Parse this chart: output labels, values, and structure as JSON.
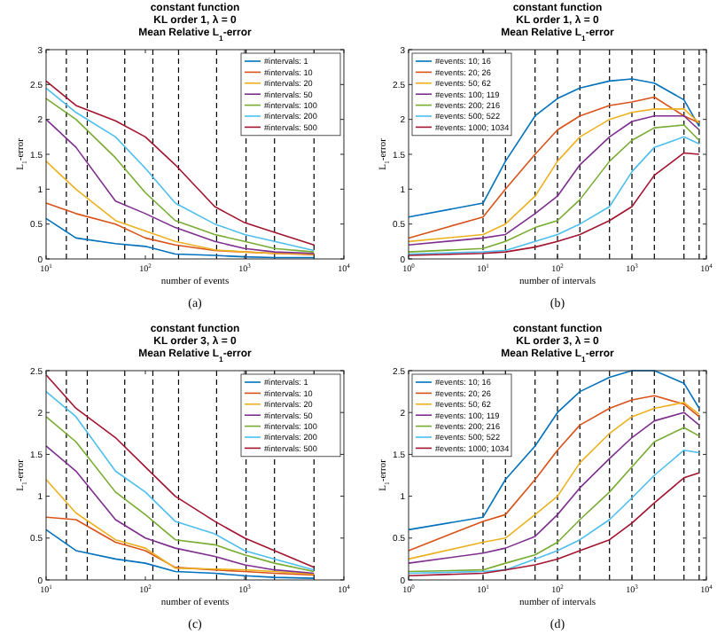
{
  "chart_data": [
    {
      "type": "line",
      "title": "constant function\nKL order 1, λ = 0\nMean Relative L$_{1}$-error",
      "xlabel": "number of events",
      "ylabel": "L$_{1}$-error",
      "annotations": [
        "(a)"
      ],
      "log": "x",
      "legend": "top right",
      "line_style": "solid",
      "x": [
        10,
        20,
        50,
        100,
        200,
        500,
        1000,
        2000,
        5000
      ],
      "xlim": [
        10,
        10000
      ],
      "xticks": [
        {
          "value": 10,
          "label": "10$^{1}$"
        },
        {
          "value": 100,
          "label": "10$^{2}$"
        },
        {
          "value": 1000,
          "label": "10$^{3}$"
        },
        {
          "value": 10000,
          "label": "10$^{4}$"
        }
      ],
      "ylim": [
        0,
        3
      ],
      "yticks": [
        0,
        0.5,
        1,
        1.5,
        2,
        2.5,
        3
      ],
      "ref_lines": [
        {
          "axis": "x",
          "value": 16,
          "color": "#000000",
          "line_style": "dashed"
        },
        {
          "axis": "x",
          "value": 26,
          "color": "#000000",
          "line_style": "dashed"
        },
        {
          "axis": "x",
          "value": 62,
          "color": "#000000",
          "line_style": "dashed"
        },
        {
          "axis": "x",
          "value": 119,
          "color": "#000000",
          "line_style": "dashed"
        },
        {
          "axis": "x",
          "value": 216,
          "color": "#000000",
          "line_style": "dashed"
        },
        {
          "axis": "x",
          "value": 522,
          "color": "#000000",
          "line_style": "dashed"
        },
        {
          "axis": "x",
          "value": 1034,
          "color": "#000000",
          "line_style": "dashed"
        },
        {
          "axis": "x",
          "value": 2000,
          "color": "#000000",
          "line_style": "dashed"
        },
        {
          "axis": "x",
          "value": 5000,
          "color": "#000000",
          "line_style": "dashed"
        }
      ],
      "series": [
        {
          "name": "#intervals: 1",
          "color": "#0072bd",
          "values": [
            0.58,
            0.3,
            0.22,
            0.18,
            0.07,
            0.05,
            0.03,
            0.02,
            0.02
          ]
        },
        {
          "name": "#intervals: 10",
          "color": "#d95319",
          "values": [
            0.8,
            0.65,
            0.5,
            0.3,
            0.2,
            0.12,
            0.1,
            0.08,
            0.06
          ]
        },
        {
          "name": "#intervals: 20",
          "color": "#edb120",
          "values": [
            1.4,
            1.0,
            0.55,
            0.4,
            0.25,
            0.13,
            0.1,
            0.08,
            0.07
          ]
        },
        {
          "name": "#intervals: 50",
          "color": "#7e2f8e",
          "values": [
            2.0,
            1.6,
            0.83,
            0.65,
            0.45,
            0.25,
            0.15,
            0.1,
            0.08
          ]
        },
        {
          "name": "#intervals: 100",
          "color": "#77ac30",
          "values": [
            2.3,
            2.0,
            1.45,
            0.95,
            0.55,
            0.35,
            0.25,
            0.15,
            0.1
          ]
        },
        {
          "name": "#intervals: 200",
          "color": "#4dbeee",
          "values": [
            2.45,
            2.1,
            1.75,
            1.3,
            0.8,
            0.5,
            0.35,
            0.25,
            0.12
          ]
        },
        {
          "name": "#intervals: 500",
          "color": "#a2142f",
          "values": [
            2.55,
            2.2,
            1.98,
            1.75,
            1.35,
            0.75,
            0.52,
            0.38,
            0.2
          ]
        }
      ]
    },
    {
      "type": "line",
      "title": "constant function\nKL order 1, λ = 0\nMean Relative L$_{1}$-error",
      "xlabel": "number of intervals",
      "ylabel": "L$_{1}$-error",
      "annotations": [
        "(b)"
      ],
      "log": "x",
      "legend": "top left",
      "line_style": "solid",
      "x": [
        1,
        10,
        20,
        50,
        100,
        200,
        500,
        1000,
        2000,
        5000,
        8000
      ],
      "xlim": [
        1,
        10000
      ],
      "xticks": [
        {
          "value": 1,
          "label": "10$^{0}$"
        },
        {
          "value": 10,
          "label": "10$^{1}$"
        },
        {
          "value": 100,
          "label": "10$^{2}$"
        },
        {
          "value": 1000,
          "label": "10$^{3}$"
        },
        {
          "value": 10000,
          "label": "10$^{4}$"
        }
      ],
      "ylim": [
        0,
        3
      ],
      "yticks": [
        0,
        0.5,
        1,
        1.5,
        2,
        2.5,
        3
      ],
      "ref_lines": [
        {
          "axis": "x",
          "value": 10,
          "color": "#000000",
          "line_style": "dashed"
        },
        {
          "axis": "x",
          "value": 20,
          "color": "#000000",
          "line_style": "dashed"
        },
        {
          "axis": "x",
          "value": 50,
          "color": "#000000",
          "line_style": "dashed"
        },
        {
          "axis": "x",
          "value": 100,
          "color": "#000000",
          "line_style": "dashed"
        },
        {
          "axis": "x",
          "value": 200,
          "color": "#000000",
          "line_style": "dashed"
        },
        {
          "axis": "x",
          "value": 500,
          "color": "#000000",
          "line_style": "dashed"
        },
        {
          "axis": "x",
          "value": 1000,
          "color": "#000000",
          "line_style": "dashed"
        },
        {
          "axis": "x",
          "value": 2000,
          "color": "#000000",
          "line_style": "dashed"
        },
        {
          "axis": "x",
          "value": 5000,
          "color": "#000000",
          "line_style": "dashed"
        },
        {
          "axis": "x",
          "value": 8000,
          "color": "#000000",
          "line_style": "dashed"
        }
      ],
      "series": [
        {
          "name": "#events: 10; 16",
          "color": "#0072bd",
          "values": [
            0.6,
            0.8,
            1.4,
            2.05,
            2.3,
            2.45,
            2.55,
            2.58,
            2.52,
            2.28,
            1.9
          ]
        },
        {
          "name": "#events: 20; 26",
          "color": "#d95319",
          "values": [
            0.3,
            0.6,
            1.0,
            1.5,
            1.85,
            2.05,
            2.2,
            2.25,
            2.32,
            2.05,
            1.95
          ]
        },
        {
          "name": "#events: 50; 62",
          "color": "#edb120",
          "values": [
            0.25,
            0.35,
            0.5,
            0.9,
            1.4,
            1.75,
            2.0,
            2.1,
            2.15,
            2.15,
            1.95
          ]
        },
        {
          "name": "#events: 100; 119",
          "color": "#7e2f8e",
          "values": [
            0.2,
            0.3,
            0.35,
            0.65,
            0.9,
            1.35,
            1.75,
            1.97,
            2.05,
            2.05,
            1.85
          ]
        },
        {
          "name": "#events: 200; 216",
          "color": "#77ac30",
          "values": [
            0.1,
            0.15,
            0.25,
            0.45,
            0.55,
            0.85,
            1.4,
            1.7,
            1.88,
            1.92,
            1.7
          ]
        },
        {
          "name": "#events: 500; 522",
          "color": "#4dbeee",
          "values": [
            0.07,
            0.1,
            0.12,
            0.25,
            0.35,
            0.5,
            0.75,
            1.25,
            1.6,
            1.75,
            1.65
          ]
        },
        {
          "name": "#events: 1000; 1034",
          "color": "#a2142f",
          "values": [
            0.05,
            0.08,
            0.1,
            0.17,
            0.25,
            0.35,
            0.55,
            0.75,
            1.2,
            1.52,
            1.5
          ]
        }
      ]
    },
    {
      "type": "line",
      "title": "constant function\nKL order 3, λ = 0\nMean Relative L$_{1}$-error",
      "xlabel": "number of events",
      "ylabel": "L$_{1}$-error",
      "annotations": [
        "(c)"
      ],
      "log": "x",
      "legend": "top right",
      "line_style": "solid",
      "x": [
        10,
        20,
        50,
        100,
        200,
        500,
        1000,
        2000,
        5000
      ],
      "xlim": [
        10,
        10000
      ],
      "xticks": [
        {
          "value": 10,
          "label": "10$^{1}$"
        },
        {
          "value": 100,
          "label": "10$^{2}$"
        },
        {
          "value": 1000,
          "label": "10$^{3}$"
        },
        {
          "value": 10000,
          "label": "10$^{4}$"
        }
      ],
      "ylim": [
        0,
        2.5
      ],
      "yticks": [
        0,
        0.5,
        1,
        1.5,
        2,
        2.5
      ],
      "ref_lines": [
        {
          "axis": "x",
          "value": 16,
          "color": "#000000",
          "line_style": "dashed"
        },
        {
          "axis": "x",
          "value": 26,
          "color": "#000000",
          "line_style": "dashed"
        },
        {
          "axis": "x",
          "value": 62,
          "color": "#000000",
          "line_style": "dashed"
        },
        {
          "axis": "x",
          "value": 119,
          "color": "#000000",
          "line_style": "dashed"
        },
        {
          "axis": "x",
          "value": 216,
          "color": "#000000",
          "line_style": "dashed"
        },
        {
          "axis": "x",
          "value": 522,
          "color": "#000000",
          "line_style": "dashed"
        },
        {
          "axis": "x",
          "value": 1034,
          "color": "#000000",
          "line_style": "dashed"
        },
        {
          "axis": "x",
          "value": 2000,
          "color": "#000000",
          "line_style": "dashed"
        },
        {
          "axis": "x",
          "value": 5000,
          "color": "#000000",
          "line_style": "dashed"
        }
      ],
      "series": [
        {
          "name": "#intervals: 1",
          "color": "#0072bd",
          "values": [
            0.6,
            0.35,
            0.25,
            0.2,
            0.1,
            0.08,
            0.05,
            0.03,
            0.02
          ]
        },
        {
          "name": "#intervals: 10",
          "color": "#d95319",
          "values": [
            0.75,
            0.72,
            0.45,
            0.35,
            0.15,
            0.12,
            0.1,
            0.08,
            0.06
          ]
        },
        {
          "name": "#intervals: 20",
          "color": "#edb120",
          "values": [
            1.2,
            0.8,
            0.48,
            0.38,
            0.14,
            0.13,
            0.12,
            0.1,
            0.07
          ]
        },
        {
          "name": "#intervals: 50",
          "color": "#7e2f8e",
          "values": [
            1.6,
            1.3,
            0.72,
            0.5,
            0.38,
            0.28,
            0.18,
            0.12,
            0.08
          ]
        },
        {
          "name": "#intervals: 100",
          "color": "#77ac30",
          "values": [
            1.95,
            1.65,
            1.05,
            0.78,
            0.48,
            0.42,
            0.3,
            0.2,
            0.1
          ]
        },
        {
          "name": "#intervals: 200",
          "color": "#4dbeee",
          "values": [
            2.25,
            1.95,
            1.3,
            1.05,
            0.7,
            0.55,
            0.35,
            0.25,
            0.12
          ]
        },
        {
          "name": "#intervals: 500",
          "color": "#a2142f",
          "values": [
            2.45,
            2.05,
            1.7,
            1.35,
            1.0,
            0.7,
            0.5,
            0.35,
            0.15
          ]
        }
      ]
    },
    {
      "type": "line",
      "title": "constant function\nKL order 3, λ = 0\nMean Relative L$_{1}$-error",
      "xlabel": "number of intervals",
      "ylabel": "L$_{1}$-error",
      "annotations": [
        "(d)"
      ],
      "log": "x",
      "legend": "top left",
      "line_style": "solid",
      "x": [
        1,
        10,
        20,
        50,
        100,
        200,
        500,
        1000,
        2000,
        5000,
        8000
      ],
      "xlim": [
        1,
        10000
      ],
      "xticks": [
        {
          "value": 1,
          "label": "10$^{0}$"
        },
        {
          "value": 10,
          "label": "10$^{1}$"
        },
        {
          "value": 100,
          "label": "10$^{2}$"
        },
        {
          "value": 1000,
          "label": "10$^{3}$"
        },
        {
          "value": 10000,
          "label": "10$^{4}$"
        }
      ],
      "ylim": [
        0,
        2.5
      ],
      "yticks": [
        0,
        0.5,
        1,
        1.5,
        2,
        2.5
      ],
      "ref_lines": [
        {
          "axis": "x",
          "value": 10,
          "color": "#000000",
          "line_style": "dashed"
        },
        {
          "axis": "x",
          "value": 20,
          "color": "#000000",
          "line_style": "dashed"
        },
        {
          "axis": "x",
          "value": 50,
          "color": "#000000",
          "line_style": "dashed"
        },
        {
          "axis": "x",
          "value": 100,
          "color": "#000000",
          "line_style": "dashed"
        },
        {
          "axis": "x",
          "value": 200,
          "color": "#000000",
          "line_style": "dashed"
        },
        {
          "axis": "x",
          "value": 500,
          "color": "#000000",
          "line_style": "dashed"
        },
        {
          "axis": "x",
          "value": 1000,
          "color": "#000000",
          "line_style": "dashed"
        },
        {
          "axis": "x",
          "value": 2000,
          "color": "#000000",
          "line_style": "dashed"
        },
        {
          "axis": "x",
          "value": 5000,
          "color": "#000000",
          "line_style": "dashed"
        },
        {
          "axis": "x",
          "value": 8000,
          "color": "#000000",
          "line_style": "dashed"
        }
      ],
      "series": [
        {
          "name": "#events: 10; 16",
          "color": "#0072bd",
          "values": [
            0.6,
            0.75,
            1.2,
            1.6,
            2.0,
            2.25,
            2.42,
            2.5,
            2.5,
            2.35,
            2.05
          ]
        },
        {
          "name": "#events: 20; 26",
          "color": "#d95319",
          "values": [
            0.35,
            0.7,
            0.78,
            1.2,
            1.55,
            1.85,
            2.05,
            2.15,
            2.2,
            2.1,
            1.95
          ]
        },
        {
          "name": "#events: 50; 62",
          "color": "#edb120",
          "values": [
            0.25,
            0.45,
            0.5,
            0.78,
            1.0,
            1.4,
            1.75,
            1.95,
            2.05,
            2.12,
            1.98
          ]
        },
        {
          "name": "#events: 100; 119",
          "color": "#7e2f8e",
          "values": [
            0.2,
            0.32,
            0.38,
            0.52,
            0.78,
            1.1,
            1.45,
            1.7,
            1.9,
            2.0,
            1.85
          ]
        },
        {
          "name": "#events: 200; 216",
          "color": "#77ac30",
          "values": [
            0.1,
            0.12,
            0.2,
            0.3,
            0.45,
            0.72,
            1.05,
            1.35,
            1.65,
            1.82,
            1.72
          ]
        },
        {
          "name": "#events: 500; 522",
          "color": "#4dbeee",
          "values": [
            0.08,
            0.1,
            0.12,
            0.25,
            0.35,
            0.48,
            0.72,
            0.98,
            1.25,
            1.55,
            1.52
          ]
        },
        {
          "name": "#events: 1000; 1034",
          "color": "#a2142f",
          "values": [
            0.05,
            0.08,
            0.12,
            0.18,
            0.25,
            0.35,
            0.48,
            0.68,
            0.92,
            1.22,
            1.28
          ]
        }
      ]
    }
  ]
}
